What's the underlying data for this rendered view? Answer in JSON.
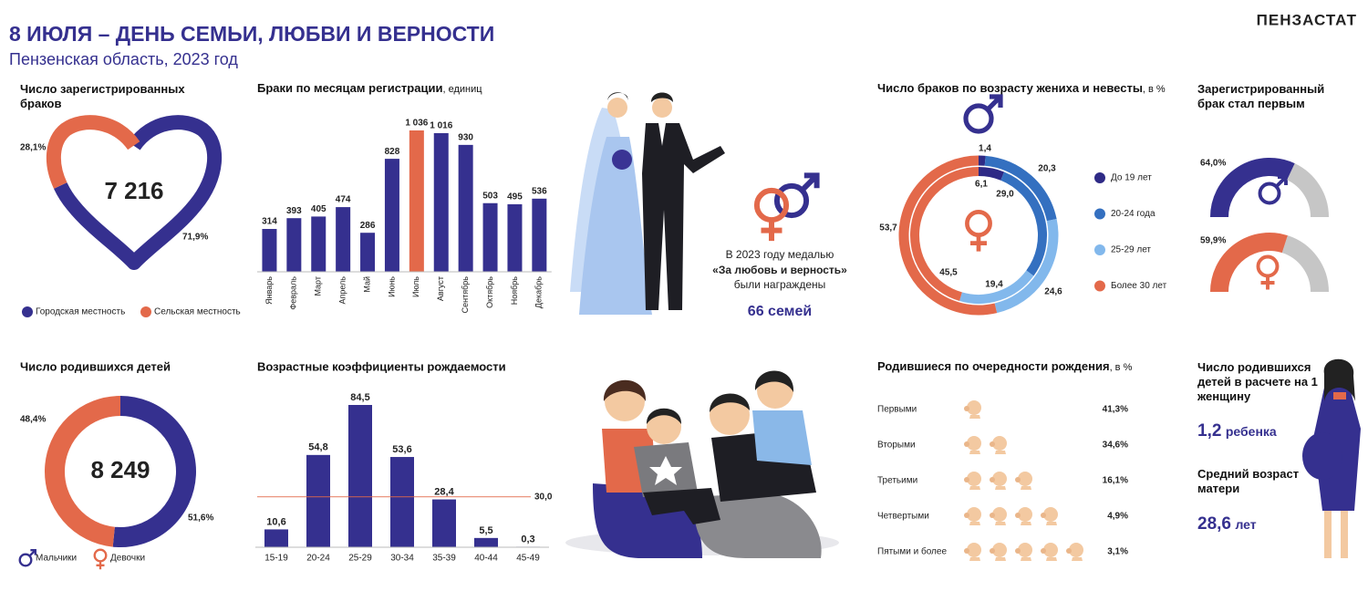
{
  "header": {
    "title": "8 ИЮЛЯ – ДЕНЬ СЕМЬИ, ЛЮБВИ И ВЕРНОСТИ",
    "subtitle": "Пензенская область, 2023 год",
    "brand": "ПЕНЗАСТАТ"
  },
  "chart_data": [
    {
      "type": "heart",
      "title": "Число зарегистрированных браков",
      "total": "7 216",
      "categories": [
        "Городская местность",
        "Сельская местность"
      ],
      "values": [
        71.9,
        28.1
      ],
      "value_labels": [
        "71,9%",
        "28,1%"
      ],
      "colors": [
        "#35308f",
        "#e3694a"
      ]
    },
    {
      "type": "bar",
      "title": "Браки по месяцам регистрации",
      "unit": ", единиц",
      "categories": [
        "Январь",
        "Февраль",
        "Март",
        "Апрель",
        "Май",
        "Июнь",
        "Июль",
        "Август",
        "Сентябрь",
        "Октябрь",
        "Ноябрь",
        "Декабрь"
      ],
      "values": [
        314,
        393,
        405,
        474,
        286,
        828,
        1036,
        1016,
        930,
        503,
        495,
        536
      ],
      "value_labels": [
        "314",
        "393",
        "405",
        "474",
        "286",
        "828",
        "1 036",
        "1 016",
        "930",
        "503",
        "495",
        "536"
      ],
      "colors": [
        "#35308f",
        "#35308f",
        "#35308f",
        "#35308f",
        "#35308f",
        "#35308f",
        "#e3694a",
        "#35308f",
        "#35308f",
        "#35308f",
        "#35308f",
        "#35308f"
      ]
    },
    {
      "type": "double-donut",
      "title": "Число браков по возрасту жениха и невесты",
      "unit": ", в %",
      "categories": [
        "До 19 лет",
        "20-24 года",
        "25-29 лет",
        "Более 30 лет"
      ],
      "colors": [
        "#2e2a86",
        "#3470c0",
        "#82b8ec",
        "#e3694a"
      ],
      "series": [
        {
          "values": [
            1.4,
            20.3,
            24.6,
            53.7
          ],
          "value_labels": [
            "1,4",
            "20,3",
            "24,6",
            "53,7"
          ]
        },
        {
          "values": [
            6.1,
            29.0,
            19.4,
            45.5
          ],
          "value_labels": [
            "6,1",
            "29,0",
            "19,4",
            "45,5"
          ]
        }
      ]
    },
    {
      "type": "gauge",
      "title": "Зарегистрированный брак стал первым",
      "values": [
        64.0,
        59.9
      ],
      "value_labels": [
        "64,0%",
        "59,9%"
      ],
      "colors": [
        "#35308f",
        "#e3694a"
      ],
      "rest_color": "#c6c6c6"
    },
    {
      "type": "donut",
      "title": "Число родившихся детей",
      "total": "8 249",
      "categories": [
        "Мальчики",
        "Девочки"
      ],
      "values": [
        51.6,
        48.4
      ],
      "value_labels": [
        "51,6%",
        "48,4%"
      ],
      "colors": [
        "#35308f",
        "#e3694a"
      ]
    },
    {
      "type": "bar",
      "title": "Возрастные коэффициенты рождаемости",
      "categories": [
        "15-19",
        "20-24",
        "25-29",
        "30-34",
        "35-39",
        "40-44",
        "45-49"
      ],
      "values": [
        10.6,
        54.8,
        84.5,
        53.6,
        28.4,
        5.5,
        0.3
      ],
      "value_labels": [
        "10,6",
        "54,8",
        "84,5",
        "53,6",
        "28,4",
        "5,5",
        "0,3"
      ],
      "color": "#35308f",
      "reference": {
        "value": 30.0,
        "label": "30,0",
        "color": "#e3694a"
      }
    },
    {
      "type": "icon-rows",
      "title": "Родившиеся по очередности рождения",
      "unit": ", в %",
      "categories": [
        "Первыми",
        "Вторыми",
        "Третьими",
        "Четвертыми",
        "Пятыми и более"
      ],
      "values": [
        41.3,
        34.6,
        16.1,
        4.9,
        3.1
      ],
      "value_labels": [
        "41,3%",
        "34,6%",
        "16,1%",
        "4,9%",
        "3,1%"
      ]
    }
  ],
  "medal": {
    "line1": "В 2023 году медалью",
    "line2": "«За любовь и верность»",
    "line3": "были награждены",
    "count": "66 семей"
  },
  "per_woman": {
    "title": "Число родившихся детей в расчете на 1 женщину",
    "value": "1,2",
    "unit": "ребенка"
  },
  "mother_age": {
    "title": "Средний возраст матери",
    "value": "28,6",
    "unit": "лет"
  }
}
